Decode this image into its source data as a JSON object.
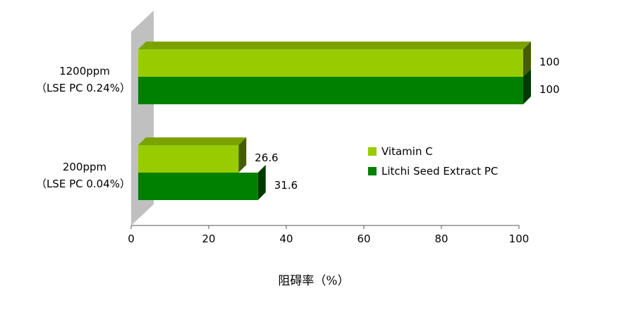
{
  "chart_data": {
    "type": "bar",
    "orientation": "horizontal",
    "title": "",
    "xlabel": "阻碍率（%）",
    "ylabel": "",
    "xlim": [
      0,
      100
    ],
    "xticks": [
      0,
      20,
      40,
      60,
      80,
      100
    ],
    "grid": false,
    "legend_position": "right",
    "categories": [
      {
        "line1": "1200ppm",
        "line2": "（LSE PC 0.24%）"
      },
      {
        "line1": "200ppm",
        "line2": "（LSE PC 0.04%）"
      }
    ],
    "series": [
      {
        "name": "Vitamin C",
        "color": "#99cc00",
        "values": [
          100,
          26.6
        ]
      },
      {
        "name": "Litchi Seed Extract PC",
        "color": "#008000",
        "values": [
          100,
          31.6
        ]
      }
    ]
  }
}
